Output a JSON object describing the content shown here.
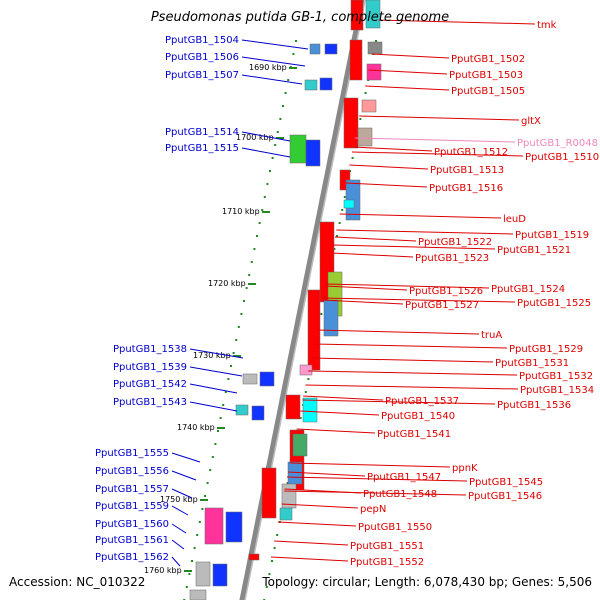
{
  "title": "Pseudomonas putida GB-1, complete genome",
  "accession": "Accession: NC_010322",
  "topology": "Topology: circular; Length: 6,078,430 bp; Genes: 5,506",
  "colors": {
    "forward_label": "#0000cc",
    "reverse_label": "#dd0000",
    "rna_label": "#ee88bb",
    "backbone": "#888888",
    "ticks": "#228822"
  },
  "ticks": [
    "1690 kbp",
    "1700 kbp",
    "1710 kbp",
    "1720 kbp",
    "1730 kbp",
    "1740 kbp",
    "1750 kbp",
    "1760 kbp"
  ],
  "left_labels": [
    "PputGB1_1504",
    "PputGB1_1506",
    "PputGB1_1507",
    "PputGB1_1514",
    "PputGB1_1515",
    "PputGB1_1538",
    "PputGB1_1539",
    "PputGB1_1542",
    "PputGB1_1543",
    "PputGB1_1555",
    "PputGB1_1556",
    "PputGB1_1557",
    "PputGB1_1559",
    "PputGB1_1560",
    "PputGB1_1561",
    "PputGB1_1562"
  ],
  "right_labels": [
    "tmk",
    "PputGB1_1502",
    "PputGB1_1503",
    "PputGB1_1505",
    "gltX",
    "PputGB1_R0048",
    "PputGB1_1510",
    "PputGB1_1512",
    "PputGB1_1513",
    "PputGB1_1516",
    "leuD",
    "PputGB1_1519",
    "PputGB1_1522",
    "PputGB1_1521",
    "PputGB1_1523",
    "PputGB1_1524",
    "PputGB1_1526",
    "PputGB1_1525",
    "PputGB1_1527",
    "truA",
    "PputGB1_1529",
    "PputGB1_1531",
    "PputGB1_1532",
    "PputGB1_1534",
    "PputGB1_1537",
    "PputGB1_1536",
    "PputGB1_1540",
    "PputGB1_1541",
    "ppnK",
    "PputGB1_1545",
    "PputGB1_1547",
    "PputGB1_1546",
    "PputGB1_1548",
    "pepN",
    "PputGB1_1550",
    "PputGB1_1551",
    "PputGB1_1552"
  ]
}
